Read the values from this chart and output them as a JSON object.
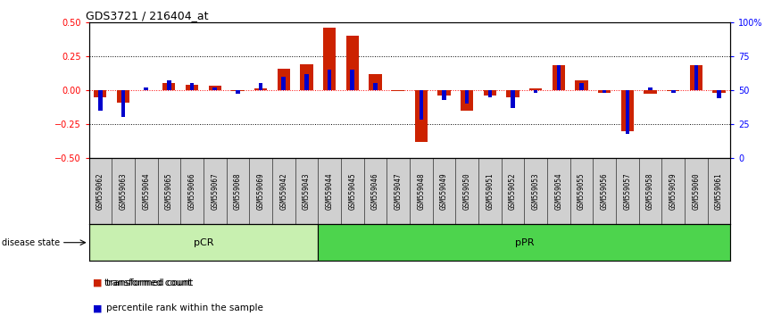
{
  "title": "GDS3721 / 216404_at",
  "samples": [
    "GSM559062",
    "GSM559063",
    "GSM559064",
    "GSM559065",
    "GSM559066",
    "GSM559067",
    "GSM559068",
    "GSM559069",
    "GSM559042",
    "GSM559043",
    "GSM559044",
    "GSM559045",
    "GSM559046",
    "GSM559047",
    "GSM559048",
    "GSM559049",
    "GSM559050",
    "GSM559051",
    "GSM559052",
    "GSM559053",
    "GSM559054",
    "GSM559055",
    "GSM559056",
    "GSM559057",
    "GSM559058",
    "GSM559059",
    "GSM559060",
    "GSM559061"
  ],
  "transformed_count": [
    -0.05,
    -0.09,
    0.0,
    0.05,
    0.04,
    0.03,
    -0.01,
    0.01,
    0.16,
    0.19,
    0.46,
    0.4,
    0.12,
    -0.01,
    -0.38,
    -0.04,
    -0.15,
    -0.04,
    -0.05,
    0.01,
    0.18,
    0.07,
    -0.02,
    -0.3,
    -0.03,
    -0.01,
    0.18,
    -0.02
  ],
  "percentile_rank": [
    35,
    30,
    52,
    57,
    55,
    52,
    47,
    55,
    60,
    62,
    65,
    65,
    55,
    50,
    28,
    43,
    40,
    45,
    37,
    48,
    68,
    55,
    48,
    18,
    52,
    48,
    68,
    44
  ],
  "pcr_count": 10,
  "ppr_count": 18,
  "pcr_color": "#c8f0b0",
  "ppr_color": "#4dd44d",
  "bar_color_red": "#cc2200",
  "bar_color_blue": "#0000cc",
  "ylim_left": [
    -0.5,
    0.5
  ],
  "ylim_right": [
    0,
    100
  ],
  "yticks_left": [
    -0.5,
    -0.25,
    0.0,
    0.25,
    0.5
  ],
  "yticks_right": [
    0,
    25,
    50,
    75,
    100
  ],
  "ytick_labels_right": [
    "0",
    "25",
    "50",
    "75",
    "100%"
  ],
  "hline_dotted": [
    -0.25,
    0.25
  ],
  "hline_red": 0.0,
  "background_color": "#ffffff",
  "label_bg_color": "#d0d0d0"
}
